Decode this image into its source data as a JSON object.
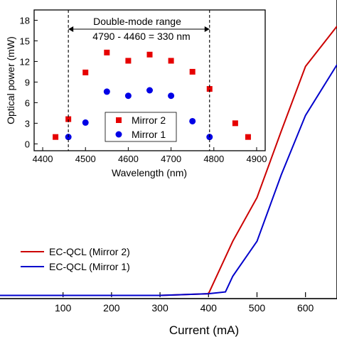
{
  "chart_data": [
    {
      "type": "line",
      "xlabel": "Current (mA)",
      "ylabel": "",
      "xlim": [
        -30,
        665
      ],
      "ylim": [
        0,
        17
      ],
      "x_ticks": [
        100,
        200,
        300,
        400,
        500,
        600
      ],
      "legend_placement": "center-left",
      "series": [
        {
          "name": "EC-QCL (Mirror 2)",
          "color": "#cc0000",
          "points": [
            [
              -30,
              0.1
            ],
            [
              300,
              0.1
            ],
            [
              400,
              0.2
            ],
            [
              450,
              3.2
            ],
            [
              500,
              5.7
            ],
            [
              550,
              9.5
            ],
            [
              600,
              13.2
            ],
            [
              665,
              15.5
            ]
          ]
        },
        {
          "name": "EC-QCL (Mirror 1)",
          "color": "#0000cc",
          "points": [
            [
              -30,
              0.1
            ],
            [
              300,
              0.1
            ],
            [
              400,
              0.2
            ],
            [
              435,
              0.3
            ],
            [
              450,
              1.2
            ],
            [
              500,
              3.2
            ],
            [
              550,
              7.0
            ],
            [
              600,
              10.4
            ],
            [
              665,
              13.3
            ]
          ]
        }
      ]
    },
    {
      "type": "scatter",
      "title": "",
      "xlabel": "Wavelength (nm)",
      "ylabel": "Optical power (mW)",
      "xlim": [
        4380,
        4920
      ],
      "ylim": [
        -1,
        19.5
      ],
      "x_ticks": [
        4400,
        4500,
        4600,
        4700,
        4800,
        4900
      ],
      "y_ticks": [
        0,
        3,
        6,
        9,
        12,
        15,
        18
      ],
      "legend_placement": "bottom-center",
      "series": [
        {
          "name": "Mirror 2",
          "color": "#e60000",
          "marker": "square",
          "points": [
            [
              4430,
              1.0
            ],
            [
              4460,
              3.6
            ],
            [
              4500,
              10.4
            ],
            [
              4550,
              13.3
            ],
            [
              4600,
              12.1
            ],
            [
              4650,
              13.0
            ],
            [
              4700,
              12.1
            ],
            [
              4750,
              10.5
            ],
            [
              4790,
              8.0
            ],
            [
              4850,
              3.0
            ],
            [
              4880,
              1.0
            ]
          ]
        },
        {
          "name": "Mirror 1",
          "color": "#0000e6",
          "marker": "circle",
          "points": [
            [
              4460,
              1.0
            ],
            [
              4500,
              3.1
            ],
            [
              4550,
              7.6
            ],
            [
              4600,
              7.0
            ],
            [
              4650,
              7.8
            ],
            [
              4700,
              7.0
            ],
            [
              4750,
              3.3
            ],
            [
              4790,
              1.0
            ]
          ]
        }
      ],
      "annotations": {
        "range_label": "Double-mode range",
        "range_formula": "4790 - 4460 = 330 nm",
        "range_bounds": [
          4460,
          4790
        ]
      }
    }
  ]
}
